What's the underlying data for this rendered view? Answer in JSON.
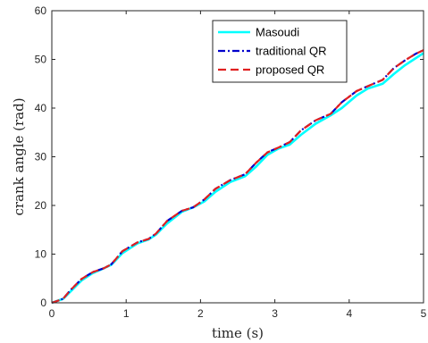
{
  "chart_data": {
    "type": "line",
    "title": "",
    "xlabel": "time (s)",
    "ylabel": "crank angle (rad)",
    "xlim": [
      0,
      5
    ],
    "ylim": [
      0,
      60
    ],
    "xticks": [
      "0",
      "1",
      "2",
      "3",
      "4",
      "5"
    ],
    "yticks": [
      "0",
      "10",
      "20",
      "30",
      "40",
      "50",
      "60"
    ],
    "grid": false,
    "legend_position": "top-right",
    "series": [
      {
        "name": "Masoudi",
        "color": "#00FFFF",
        "dash": "solid",
        "x": [
          0,
          0.15,
          0.25,
          0.4,
          0.55,
          0.7,
          0.8,
          0.95,
          1.15,
          1.3,
          1.4,
          1.55,
          1.75,
          1.9,
          2.05,
          2.2,
          2.4,
          2.6,
          2.75,
          2.9,
          3.05,
          3.2,
          3.35,
          3.55,
          3.75,
          3.9,
          4.1,
          4.25,
          4.45,
          4.6,
          4.75,
          4.9,
          5.0
        ],
        "y": [
          0,
          0.8,
          2.3,
          4.6,
          6.1,
          7.1,
          7.8,
          10.2,
          12.2,
          13.0,
          14.0,
          16.3,
          18.7,
          19.6,
          20.8,
          22.8,
          24.8,
          26.0,
          28.0,
          30.4,
          31.7,
          32.5,
          34.5,
          36.8,
          38.5,
          40.0,
          42.6,
          44.0,
          45.0,
          47.0,
          48.8,
          50.3,
          51.3
        ]
      },
      {
        "name": "traditional QR",
        "color": "#0000CC",
        "dash": "dashdot",
        "x": [
          0,
          0.15,
          0.25,
          0.4,
          0.55,
          0.7,
          0.8,
          0.95,
          1.15,
          1.3,
          1.4,
          1.55,
          1.75,
          1.9,
          2.05,
          2.2,
          2.4,
          2.6,
          2.75,
          2.9,
          3.05,
          3.2,
          3.35,
          3.55,
          3.75,
          3.9,
          4.1,
          4.25,
          4.45,
          4.6,
          4.75,
          4.9,
          5.0
        ],
        "y": [
          0,
          0.8,
          2.6,
          4.9,
          6.3,
          7.1,
          7.9,
          10.6,
          12.4,
          13.1,
          14.2,
          16.8,
          18.9,
          19.6,
          21.2,
          23.4,
          25.2,
          26.4,
          28.8,
          30.9,
          31.9,
          33.0,
          35.4,
          37.5,
          38.8,
          41.2,
          43.5,
          44.5,
          45.8,
          48.2,
          49.8,
          51.2,
          51.9
        ]
      },
      {
        "name": "proposed QR",
        "color": "#E02020",
        "dash": "dashed",
        "x": [
          0,
          0.15,
          0.25,
          0.4,
          0.55,
          0.7,
          0.8,
          0.95,
          1.15,
          1.3,
          1.4,
          1.55,
          1.75,
          1.9,
          2.05,
          2.2,
          2.4,
          2.6,
          2.75,
          2.9,
          3.05,
          3.2,
          3.35,
          3.55,
          3.75,
          3.9,
          4.1,
          4.25,
          4.45,
          4.6,
          4.75,
          4.9,
          5.0
        ],
        "y": [
          0,
          0.8,
          2.6,
          4.9,
          6.3,
          7.1,
          7.9,
          10.6,
          12.4,
          13.1,
          14.2,
          16.8,
          18.9,
          19.6,
          21.2,
          23.4,
          25.2,
          26.4,
          28.8,
          30.9,
          31.9,
          33.0,
          35.4,
          37.5,
          38.8,
          41.2,
          43.5,
          44.5,
          45.8,
          48.2,
          49.8,
          51.2,
          51.9
        ]
      }
    ]
  }
}
